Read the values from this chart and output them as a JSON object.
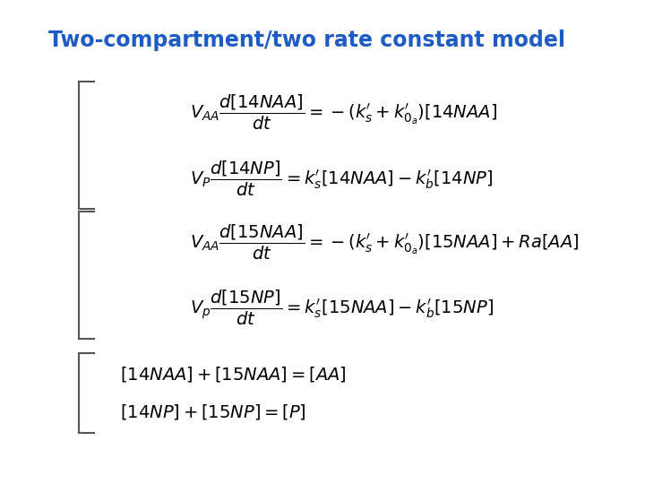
{
  "title": "Two-compartment/two rate constant model",
  "title_color": "#1F5BC4",
  "title_fontsize": 17,
  "background_color": "#ffffff",
  "eq1a": "$V_{AA}\\dfrac{d[14NAA]}{dt} = -(k_s'+k_{0_a}')[14NAA]$",
  "eq1b": "$V_P\\dfrac{d[14NP]}{dt} = k_s'[14NAA]-k_b'[14NP]$",
  "eq2a": "$V_{AA}\\dfrac{d[15NAA]}{dt} = -(k_s'+k_{0_a}')[15NAA] + Ra[AA]$",
  "eq2b": "$V_p\\dfrac{d[15NP]}{dt} = k_s'[15NAA]-k_b'[15NP]$",
  "eq3a": "$[14NAA]+[15NAA]=[AA]$",
  "eq3b": "$[14NP]+[15NP]=[P]$",
  "eq_fontsize": 14,
  "eq_color": "#000000",
  "bracket_color": "#555555"
}
